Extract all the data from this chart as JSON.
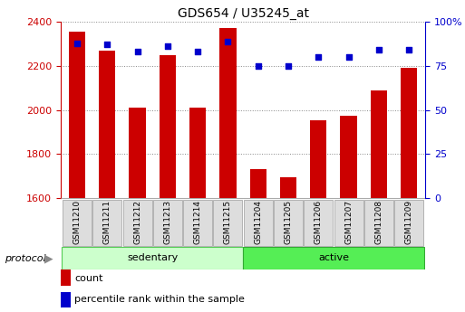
{
  "title": "GDS654 / U35245_at",
  "samples": [
    "GSM11210",
    "GSM11211",
    "GSM11212",
    "GSM11213",
    "GSM11214",
    "GSM11215",
    "GSM11204",
    "GSM11205",
    "GSM11206",
    "GSM11207",
    "GSM11208",
    "GSM11209"
  ],
  "counts": [
    2355,
    2270,
    2010,
    2250,
    2010,
    2370,
    1730,
    1695,
    1955,
    1975,
    2090,
    2190
  ],
  "percentile": [
    88,
    87,
    83,
    86,
    83,
    89,
    75,
    75,
    80,
    80,
    84,
    84
  ],
  "groups": [
    {
      "label": "sedentary",
      "start": 0,
      "end": 6,
      "color": "#ccffcc",
      "edgecolor": "#55cc55"
    },
    {
      "label": "active",
      "start": 6,
      "end": 12,
      "color": "#55ee55",
      "edgecolor": "#33aa33"
    }
  ],
  "ylim_left": [
    1600,
    2400
  ],
  "ylim_right": [
    0,
    100
  ],
  "yticks_left": [
    1600,
    1800,
    2000,
    2200,
    2400
  ],
  "yticks_right": [
    0,
    25,
    50,
    75,
    100
  ],
  "bar_color": "#cc0000",
  "dot_color": "#0000cc",
  "protocol_label": "protocol",
  "legend_count": "count",
  "legend_percentile": "percentile rank within the sample",
  "grid_color": "#888888",
  "bar_width": 0.55,
  "tick_box_color": "#dddddd",
  "tick_box_edge": "#aaaaaa"
}
